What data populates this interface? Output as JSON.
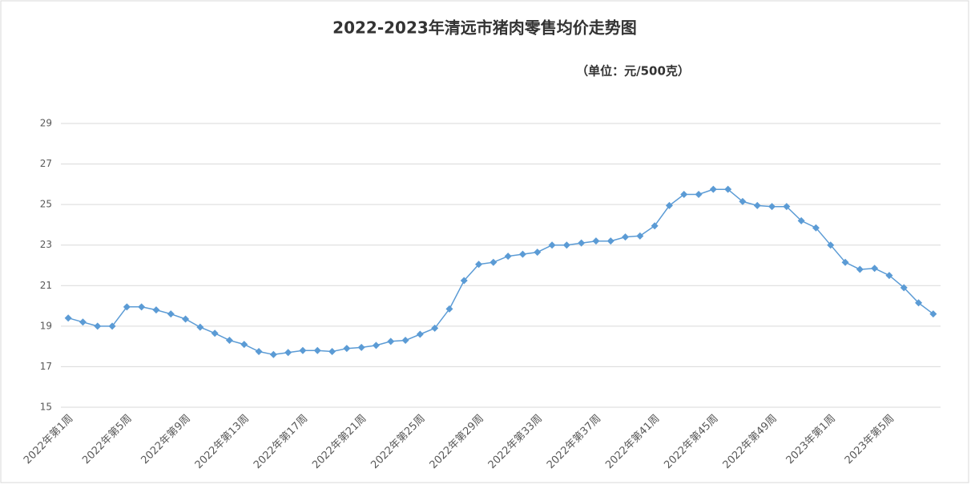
{
  "chart_data": {
    "type": "line",
    "title": "2022-2023年清远市猪肉零售均价走势图",
    "subtitle": "（单位：元/500克）",
    "categories": [
      "2022年第1周",
      null,
      null,
      null,
      "2022年第5周",
      null,
      null,
      null,
      "2022年第9周",
      null,
      null,
      null,
      "2022年第13周",
      null,
      null,
      null,
      "2022年第17周",
      null,
      null,
      null,
      "2022年第21周",
      null,
      null,
      null,
      "2022年第25周",
      null,
      null,
      null,
      "2022年第29周",
      null,
      null,
      null,
      "2022年第33周",
      null,
      null,
      null,
      "2022年第37周",
      null,
      null,
      null,
      "2022年第41周",
      null,
      null,
      null,
      "2022年第45周",
      null,
      null,
      null,
      "2022年第49周",
      null,
      null,
      null,
      "2023年第1周",
      null,
      null,
      null,
      "2023年第5周",
      null,
      null,
      null
    ],
    "series": [
      {
        "color": "#5b9bd5",
        "values": [
          19.4,
          19.2,
          19.0,
          19.0,
          19.95,
          19.95,
          19.8,
          19.6,
          19.35,
          18.95,
          18.65,
          18.3,
          18.1,
          17.75,
          17.6,
          17.7,
          17.8,
          17.8,
          17.75,
          17.9,
          17.95,
          18.05,
          18.25,
          18.3,
          18.6,
          18.9,
          19.85,
          21.25,
          22.05,
          22.15,
          22.45,
          22.55,
          22.65,
          23.0,
          23.0,
          23.1,
          23.2,
          23.2,
          23.4,
          23.45,
          23.95,
          24.95,
          25.5,
          25.5,
          25.75,
          25.75,
          25.15,
          24.95,
          24.9,
          24.9,
          24.2,
          23.85,
          23.0,
          22.15,
          21.8,
          21.85,
          21.5,
          20.9,
          20.15,
          19.6
        ]
      }
    ],
    "ylim": [
      15,
      29
    ],
    "yticks": [
      15,
      17,
      19,
      21,
      23,
      25,
      27,
      29
    ],
    "grid": true
  }
}
